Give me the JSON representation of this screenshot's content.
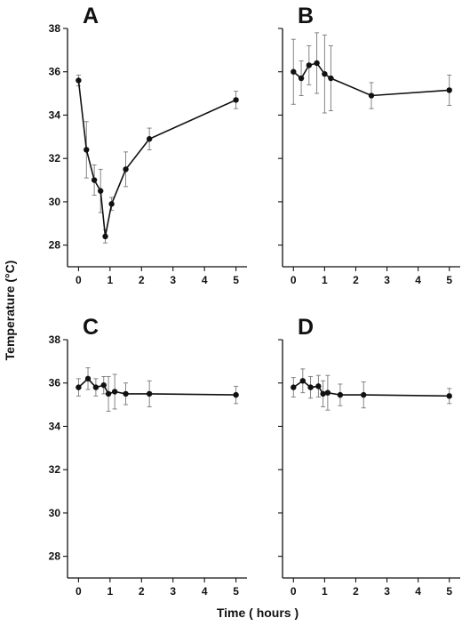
{
  "figure": {
    "ylabel": "Temperature (°C)",
    "xlabel": "Time ( hours )"
  },
  "chart_data": [
    {
      "type": "line",
      "panel": "A",
      "xlim": [
        -0.35,
        5.35
      ],
      "ylim": [
        27,
        38
      ],
      "xticks": [
        0,
        1,
        2,
        3,
        4,
        5
      ],
      "yticks": [
        28,
        30,
        32,
        34,
        36,
        38
      ],
      "show_y_tick_labels": true,
      "x": [
        0,
        0.25,
        0.5,
        0.7,
        0.85,
        1.05,
        1.5,
        2.25,
        5
      ],
      "y": [
        35.6,
        32.4,
        31.0,
        30.5,
        28.4,
        29.9,
        31.5,
        32.9,
        34.7
      ],
      "error": [
        0.25,
        1.3,
        0.7,
        1.0,
        0.3,
        0.3,
        0.8,
        0.5,
        0.4
      ]
    },
    {
      "type": "line",
      "panel": "B",
      "xlim": [
        -0.35,
        5.35
      ],
      "ylim": [
        27,
        38
      ],
      "xticks": [
        0,
        1,
        2,
        3,
        4,
        5
      ],
      "yticks": [
        28,
        30,
        32,
        34,
        36,
        38
      ],
      "show_y_tick_labels": false,
      "x": [
        0,
        0.25,
        0.5,
        0.75,
        1.0,
        1.2,
        2.5,
        5
      ],
      "y": [
        36.0,
        35.7,
        36.3,
        36.4,
        35.9,
        35.7,
        34.9,
        35.15
      ],
      "error": [
        1.5,
        0.8,
        0.9,
        1.4,
        1.8,
        1.5,
        0.6,
        0.7
      ]
    },
    {
      "type": "line",
      "panel": "C",
      "xlim": [
        -0.35,
        5.35
      ],
      "ylim": [
        27,
        38
      ],
      "xticks": [
        0,
        1,
        2,
        3,
        4,
        5
      ],
      "yticks": [
        28,
        30,
        32,
        34,
        36,
        38
      ],
      "show_y_tick_labels": true,
      "x": [
        0,
        0.3,
        0.55,
        0.8,
        0.95,
        1.15,
        1.5,
        2.25,
        5
      ],
      "y": [
        35.8,
        36.2,
        35.8,
        35.9,
        35.5,
        35.6,
        35.5,
        35.5,
        35.45
      ],
      "error": [
        0.4,
        0.5,
        0.4,
        0.4,
        0.8,
        0.8,
        0.5,
        0.6,
        0.4
      ]
    },
    {
      "type": "line",
      "panel": "D",
      "xlim": [
        -0.35,
        5.35
      ],
      "ylim": [
        27,
        38
      ],
      "xticks": [
        0,
        1,
        2,
        3,
        4,
        5
      ],
      "yticks": [
        28,
        30,
        32,
        34,
        36,
        38
      ],
      "show_y_tick_labels": false,
      "x": [
        0,
        0.3,
        0.55,
        0.8,
        0.95,
        1.1,
        1.5,
        2.25,
        5
      ],
      "y": [
        35.8,
        36.1,
        35.8,
        35.85,
        35.5,
        35.55,
        35.45,
        35.45,
        35.4
      ],
      "error": [
        0.45,
        0.55,
        0.5,
        0.5,
        0.6,
        0.8,
        0.5,
        0.6,
        0.35
      ]
    }
  ]
}
